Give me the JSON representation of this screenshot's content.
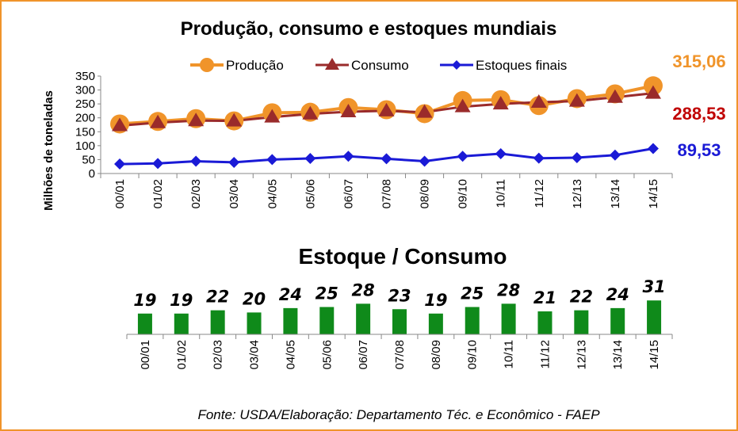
{
  "colors": {
    "frame": "#f0942a",
    "producao": "#f0942a",
    "consumo": "#9a2b2b",
    "estoques": "#1a1ad6",
    "bars": "#0f8a1a",
    "end_producao": "#f0942a",
    "end_consumo": "#c00000",
    "end_estoques": "#1a1ad6"
  },
  "chart_data": [
    {
      "type": "line",
      "title": "Produção, consumo e estoques mundiais",
      "ylabel": "Milhões de toneladas",
      "xlabel": "",
      "ylim": [
        0,
        350
      ],
      "yticks": [
        "0",
        "50",
        "100",
        "150",
        "200",
        "250",
        "300",
        "350"
      ],
      "categories": [
        "00/01",
        "01/02",
        "02/03",
        "03/04",
        "04/05",
        "05/06",
        "06/07",
        "07/08",
        "08/09",
        "09/10",
        "10/11",
        "11/12",
        "12/13",
        "13/14",
        "14/15"
      ],
      "legend_position": "top",
      "series": [
        {
          "name": "Produção",
          "marker": "circle",
          "values": [
            178,
            187,
            197,
            189,
            218,
            220,
            237,
            229,
            215,
            262,
            265,
            244,
            269,
            286,
            315.06
          ]
        },
        {
          "name": "Consumo",
          "marker": "triangle",
          "values": [
            172,
            183,
            190,
            189,
            203,
            214,
            222,
            225,
            220,
            240,
            250,
            256,
            260,
            274,
            288.53
          ]
        },
        {
          "name": "Estoques finais",
          "marker": "diamond",
          "values": [
            34,
            36,
            44,
            40,
            50,
            54,
            62,
            53,
            44,
            62,
            71,
            55,
            57,
            66,
            89.53
          ]
        }
      ],
      "end_labels": [
        "315,06",
        "288,53",
        "89,53"
      ]
    },
    {
      "type": "bar",
      "title": "Estoque / Consumo",
      "categories": [
        "00/01",
        "01/02",
        "02/03",
        "03/04",
        "04/05",
        "05/06",
        "06/07",
        "07/08",
        "08/09",
        "09/10",
        "10/11",
        "11/12",
        "12/13",
        "13/14",
        "14/15"
      ],
      "values": [
        19,
        19,
        22,
        20,
        24,
        25,
        28,
        23,
        19,
        25,
        28,
        21,
        22,
        24,
        31
      ],
      "data_labels": [
        "19",
        "19",
        "22",
        "20",
        "24",
        "25",
        "28",
        "23",
        "19",
        "25",
        "28",
        "21",
        "22",
        "24",
        "31"
      ]
    }
  ],
  "source": "Fonte: USDA/Elaboração: Departamento Téc. e Econômico - FAEP"
}
